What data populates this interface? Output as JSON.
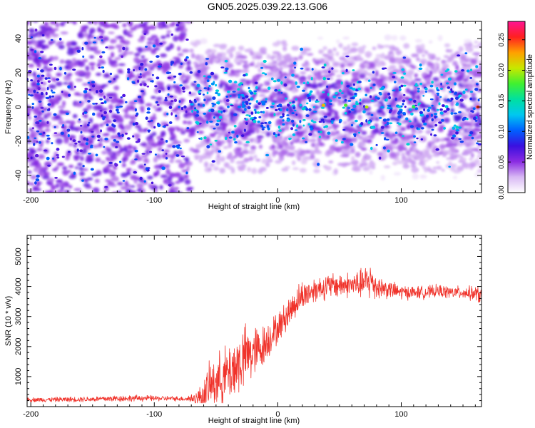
{
  "figure_title": "GN05.2025.039.22.13.G06",
  "chart_data": [
    {
      "type": "heatmap",
      "title": "GN05.2025.039.22.13.G06",
      "xlabel": "Height of straight line (km)",
      "ylabel": "Frequency (Hz)",
      "xlim": [
        -203,
        165
      ],
      "ylim": [
        -50,
        50
      ],
      "xticks": [
        -200,
        -100,
        0,
        100
      ],
      "yticks": [
        -40,
        -20,
        0,
        20,
        40
      ],
      "colorbar": {
        "label": "Normalized spectral amplitude",
        "range": [
          0,
          0.28
        ],
        "ticks": [
          "0.00",
          "0.05",
          "0.10",
          "0.15",
          "0.20",
          "0.25"
        ],
        "tick_values": [
          0,
          0.05,
          0.1,
          0.15,
          0.2,
          0.25
        ],
        "colormap": "rainbow",
        "stops": [
          "#ffffff",
          "#d8b8f4",
          "#8a2be2",
          "#3a10e0",
          "#0060ff",
          "#00c8f0",
          "#00e0a0",
          "#40f030",
          "#c8e800",
          "#ffa000",
          "#ff2020",
          "#ff1493"
        ]
      },
      "description_of_values": "Signal band spans roughly -45 to 45 Hz; denser, brighter cyan/green features concentrated near 0 Hz at heights above about -60 km; dense blue-purple noise for heights below about -70 km",
      "hotspots": [
        {
          "x": 37,
          "y": 1,
          "value": 0.22
        },
        {
          "x": 55,
          "y": 1,
          "value": 0.18
        },
        {
          "x": 72,
          "y": 0,
          "value": 0.2
        },
        {
          "x": 110,
          "y": 0,
          "value": 0.17
        },
        {
          "x": 162,
          "y": 0,
          "value": 0.25
        }
      ]
    },
    {
      "type": "line",
      "xlabel": "Height of straight line (km)",
      "ylabel": "SNR (10 * v/v)",
      "xlim": [
        -203,
        165
      ],
      "ylim": [
        0,
        5700
      ],
      "xticks": [
        -200,
        -100,
        0,
        100
      ],
      "yticks": [
        1000,
        2000,
        3000,
        4000,
        5000
      ],
      "line_color": "#f0332b",
      "series": [
        {
          "x": [
            -203,
            -190,
            -170,
            -150,
            -130,
            -110,
            -90,
            -75,
            -65,
            -60,
            -55,
            -50,
            -45,
            -40,
            -35,
            -30,
            -25,
            -20,
            -15,
            -10,
            -5,
            0,
            5,
            10,
            15,
            20,
            25,
            30,
            40,
            50,
            60,
            70,
            75,
            80,
            90,
            100,
            110,
            120,
            130,
            140,
            150,
            160,
            165
          ],
          "y": [
            230,
            230,
            240,
            250,
            270,
            280,
            270,
            260,
            280,
            400,
            700,
            850,
            950,
            1100,
            1300,
            1500,
            1700,
            1800,
            1900,
            2100,
            2400,
            2600,
            2900,
            3200,
            3500,
            3700,
            3800,
            3900,
            4000,
            4050,
            4050,
            4100,
            4200,
            4000,
            3900,
            3800,
            3800,
            3800,
            3850,
            3800,
            3800,
            3750,
            3700
          ],
          "noise_amplitude": [
            90,
            90,
            100,
            110,
            130,
            120,
            100,
            90,
            300,
            600,
            900,
            1000,
            1100,
            1200,
            1300,
            1300,
            1200,
            1100,
            900,
            800,
            700,
            600,
            600,
            600,
            600,
            600,
            550,
            500,
            500,
            500,
            500,
            600,
            800,
            500,
            350,
            300,
            250,
            250,
            250,
            250,
            250,
            300,
            400
          ]
        }
      ]
    }
  ]
}
